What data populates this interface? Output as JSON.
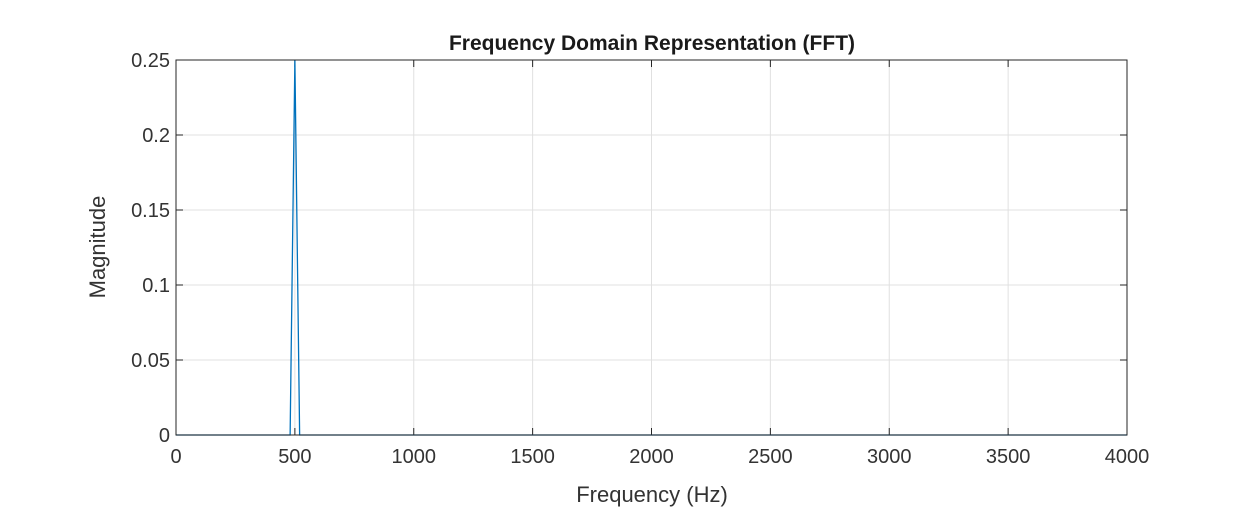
{
  "chart_data": {
    "type": "line",
    "title": "Frequency Domain Representation (FFT)",
    "xlabel": "Frequency (Hz)",
    "ylabel": "Magnitude",
    "xlim": [
      0,
      4000
    ],
    "ylim": [
      0,
      0.25
    ],
    "xticks": [
      0,
      500,
      1000,
      1500,
      2000,
      2500,
      3000,
      3500,
      4000
    ],
    "xtick_labels": [
      "0",
      "500",
      "1000",
      "1500",
      "2000",
      "2500",
      "3000",
      "3500",
      "4000"
    ],
    "yticks": [
      0,
      0.05,
      0.1,
      0.15,
      0.2,
      0.25
    ],
    "ytick_labels": [
      "0",
      "0.05",
      "0.1",
      "0.15",
      "0.2",
      "0.25"
    ],
    "grid": true,
    "line_color": "#0072BD",
    "series": [
      {
        "x": [
          0,
          480,
          500,
          520,
          4000
        ],
        "y": [
          0,
          0,
          0.25,
          0,
          0
        ]
      }
    ]
  }
}
